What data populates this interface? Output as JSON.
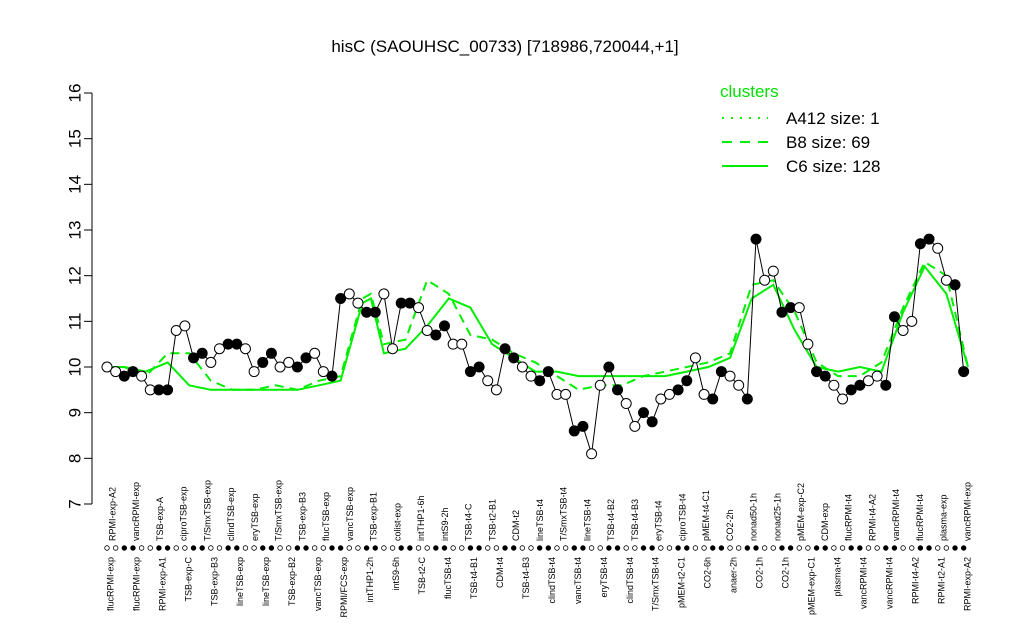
{
  "chart_data": {
    "type": "line",
    "title": "hisC (SAOUHSC_00733) [718986,720044,+1]",
    "xlabel": "",
    "ylabel": "",
    "ylim": [
      7,
      16
    ],
    "yticks": [
      7,
      8,
      9,
      10,
      11,
      12,
      13,
      14,
      15,
      16
    ],
    "grid": false,
    "legend": {
      "title": "clusters",
      "position": "top-right",
      "entries": [
        {
          "label": "A412 size: 1",
          "style": "dotted"
        },
        {
          "label": "B8 size: 69",
          "style": "dashed"
        },
        {
          "label": "C6 size: 128",
          "style": "solid"
        }
      ]
    },
    "tick_labels_top": [
      "RPMI-exp-A2",
      "vancRPMI-exp",
      "TSB-exp-A",
      "ciproTSB-exp",
      "T/SmxTSB-exp",
      "clindTSB-exp",
      "eryTSB-exp",
      "T/SmxTSB-exp",
      "TSB-exp-B3",
      "flucTSB-exp",
      "vancTSB-exp",
      "TSB-exp-B1",
      "colist-exp",
      "intTHP1-6h",
      "intS9-2h",
      "TSB-t4-C",
      "TSB-t2-B1",
      "CDM-t2",
      "lineTSB-t4",
      "T/SmxTSB-t4",
      "lineTSB-t4",
      "TSB-t4-B2",
      "TSB-t4-B3",
      "eryTSB-t4",
      "ciproTSB-t4",
      "pMEM-t4-C1",
      "CO2-2h",
      "nonad50-1h",
      "nonad25-1h",
      "pMEM-exp-C2",
      "CDM-exp",
      "flucRPMI-t4",
      "RPMI-t4-A2",
      "vancRPMI-t4",
      "flucRPMI-t4",
      "plasma-exp",
      "vancRPMI-exp"
    ],
    "tick_labels_bottom": [
      "flucRPMI-exp",
      "flucRPMI-exp",
      "RPMI-exp-A1",
      "TSB-exp-C",
      "TSB-exp-B3",
      "lineTSB-exp",
      "lineTSB-exp",
      "TSB-exp-B2",
      "vancTSB-exp",
      "RPMI/FCS-exp",
      "intTHP1-2h",
      "intS9-6h",
      "TSB-t2-C",
      "flucTSB-t4",
      "TSB-t4-B1",
      "CDM-t4",
      "TSB-t4-B3",
      "clindTSB-t4",
      "vancTSB-t4",
      "eryTSB-t4",
      "clindTSB-t4",
      "T/SmxTSB-t4",
      "pMEM-t2-C1",
      "CO2-6h",
      "anaer-2h",
      "CO2-1h",
      "CO2-1h",
      "pMEM-exp-C1",
      "plasma-t4",
      "vancRPMI-t4",
      "vancRPMI-t4",
      "RPMI-t4-A2",
      "RPMI-t2-A1",
      "RPMI-exp-A2"
    ],
    "series": [
      {
        "style": "solid",
        "color": "#00ee00",
        "x": [
          1,
          5,
          10,
          15,
          20,
          25,
          30,
          35,
          40,
          45,
          50,
          55,
          60,
          62,
          65,
          70,
          75,
          80,
          85,
          90,
          95,
          100,
          105,
          110,
          115,
          120,
          125,
          130,
          135,
          140,
          145,
          150,
          155,
          160,
          165,
          170,
          175,
          180,
          185,
          190,
          195,
          200
        ],
        "values": [
          10.0,
          10.0,
          9.9,
          10.1,
          9.6,
          9.5,
          9.5,
          9.5,
          9.5,
          9.5,
          9.6,
          9.7,
          11.4,
          11.5,
          10.3,
          10.4,
          10.9,
          11.5,
          11.3,
          10.5,
          10.2,
          9.9,
          9.9,
          9.8,
          9.8,
          9.8,
          9.8,
          9.8,
          9.9,
          10.0,
          10.2,
          11.5,
          11.8,
          10.8,
          10.0,
          9.9,
          10.0,
          9.9,
          11.2,
          12.2,
          11.6,
          10.0
        ]
      },
      {
        "style": "dashed",
        "color": "#00ee00",
        "x": [
          1,
          5,
          10,
          15,
          20,
          25,
          30,
          35,
          40,
          45,
          50,
          55,
          60,
          62,
          65,
          70,
          75,
          80,
          85,
          90,
          95,
          100,
          105,
          110,
          115,
          120,
          125,
          130,
          135,
          140,
          145,
          150,
          155,
          160,
          165,
          170,
          175,
          180,
          185,
          190,
          195,
          200
        ],
        "values": [
          10.0,
          10.0,
          9.8,
          10.3,
          10.3,
          9.7,
          9.5,
          9.5,
          9.6,
          9.5,
          9.7,
          9.8,
          11.5,
          11.6,
          10.5,
          10.6,
          11.9,
          11.6,
          10.7,
          10.6,
          10.3,
          10.1,
          9.8,
          9.5,
          9.6,
          9.6,
          9.8,
          9.9,
          10.0,
          10.1,
          10.3,
          11.8,
          11.9,
          11.2,
          10.1,
          9.8,
          9.8,
          10.1,
          11.3,
          12.3,
          12.0,
          10.0
        ]
      },
      {
        "style": "points",
        "color": "#000000",
        "x": [
          1,
          3,
          5,
          7,
          9,
          11,
          13,
          15,
          17,
          19,
          21,
          23,
          25,
          27,
          29,
          31,
          33,
          35,
          37,
          39,
          41,
          43,
          45,
          47,
          49,
          51,
          53,
          55,
          57,
          59,
          61,
          63,
          65,
          67,
          69,
          71,
          73,
          75,
          77,
          79,
          81,
          83,
          85,
          87,
          89,
          91,
          93,
          95,
          97,
          99,
          101,
          103,
          105,
          107,
          109,
          111,
          113,
          115,
          117,
          119,
          121,
          123,
          125,
          127,
          129,
          131,
          133,
          135,
          137,
          139,
          141,
          143,
          145,
          147,
          149,
          151,
          153,
          155,
          157,
          159,
          161,
          163,
          165,
          167,
          169,
          171,
          173,
          175,
          177,
          179,
          181,
          183,
          185,
          187,
          189,
          191,
          193,
          195,
          197,
          199
        ],
        "values": [
          10.0,
          9.9,
          9.8,
          9.9,
          9.8,
          9.5,
          9.5,
          9.5,
          10.8,
          10.9,
          10.2,
          10.3,
          10.1,
          10.4,
          10.5,
          10.5,
          10.4,
          9.9,
          10.1,
          10.3,
          10.0,
          10.1,
          10.0,
          10.2,
          10.3,
          9.9,
          9.8,
          11.5,
          11.6,
          11.4,
          11.2,
          11.2,
          11.6,
          10.4,
          11.4,
          11.4,
          11.3,
          10.8,
          10.7,
          10.9,
          10.5,
          10.5,
          9.9,
          10.0,
          9.7,
          9.5,
          10.4,
          10.2,
          10.0,
          9.8,
          9.7,
          9.9,
          9.4,
          9.4,
          8.6,
          8.7,
          8.1,
          9.6,
          10.0,
          9.5,
          9.2,
          8.7,
          9.0,
          8.8,
          9.3,
          9.4,
          9.5,
          9.7,
          10.2,
          9.4,
          9.3,
          9.9,
          9.8,
          9.6,
          9.3,
          12.8,
          11.9,
          12.1,
          11.2,
          11.3,
          11.3,
          10.5,
          9.9,
          9.8,
          9.6,
          9.3,
          9.5,
          9.6,
          9.7,
          9.8,
          9.6,
          11.1,
          10.8,
          11.0,
          12.7,
          12.8,
          12.6,
          11.9,
          11.8,
          9.9
        ],
        "open_note": "open and filled circles alternate by sample"
      }
    ]
  }
}
